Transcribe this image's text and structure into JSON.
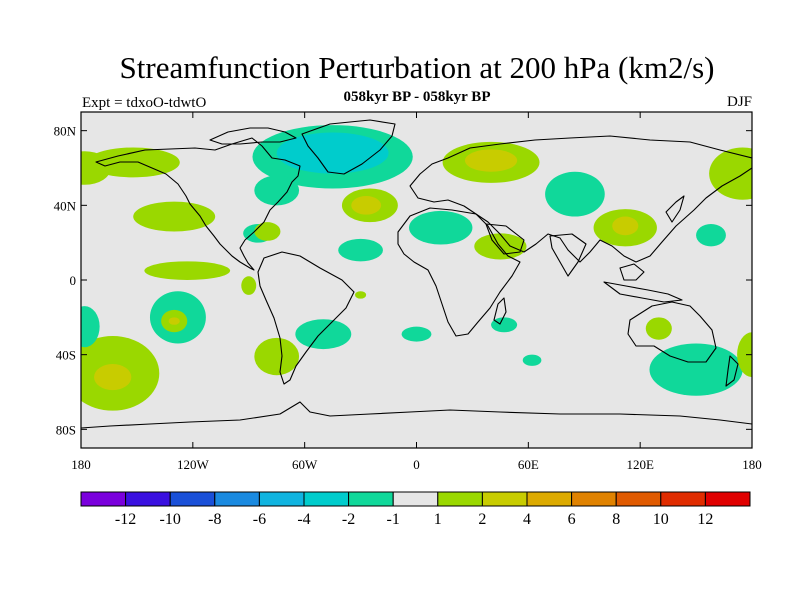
{
  "header": {
    "title": "Streamfunction Perturbation at 200 hPa (km2/s)",
    "subtitle": "058kyr BP - 058kyr BP",
    "left_label": "Expt = tdxoO-tdwtO",
    "right_label": "DJF"
  },
  "chart_data": {
    "type": "heatmap",
    "projection": "cylindrical-equidistant",
    "title": "Streamfunction Perturbation at 200 hPa (km2/s)",
    "subtitle": "058kyr BP - 058kyr BP",
    "xlim": [
      -180,
      180
    ],
    "ylim": [
      -90,
      90
    ],
    "x_ticks": [
      {
        "value": -180,
        "label": "180"
      },
      {
        "value": -120,
        "label": "120W"
      },
      {
        "value": -60,
        "label": "60W"
      },
      {
        "value": 0,
        "label": "0"
      },
      {
        "value": 60,
        "label": "60E"
      },
      {
        "value": 120,
        "label": "120E"
      },
      {
        "value": 180,
        "label": "180"
      }
    ],
    "y_ticks": [
      {
        "value": 80,
        "label": "80N"
      },
      {
        "value": 40,
        "label": "40N"
      },
      {
        "value": 0,
        "label": "0"
      },
      {
        "value": -40,
        "label": "40S"
      },
      {
        "value": -80,
        "label": "80S"
      }
    ],
    "background_color": "#e6e6e6",
    "colorbar": {
      "colors": [
        "#7a00dc",
        "#3a10e0",
        "#1a50d8",
        "#1a8ae0",
        "#10b4e0",
        "#00cccc",
        "#10d89a",
        "#e6e6e6",
        "#9ad800",
        "#c8cc00",
        "#dcaa00",
        "#e08200",
        "#e05a00",
        "#e02c00",
        "#e00000"
      ],
      "labels": [
        "-12",
        "-10",
        "-8",
        "-6",
        "-4",
        "-2",
        "-1",
        "1",
        "2",
        "4",
        "6",
        "8",
        "10",
        "12"
      ]
    },
    "regions": [
      {
        "id": "pos-n-atlantic-west-nam",
        "level": "2",
        "color": "#9ad800",
        "lon": -152,
        "lat": 63,
        "rlon": 25,
        "rlat": 8
      },
      {
        "id": "pos-n-atlantic-west-nam-2",
        "level": "2",
        "color": "#9ad800",
        "lon": -178,
        "lat": 60,
        "rlon": 14,
        "rlat": 9
      },
      {
        "id": "pos-n-nam-east",
        "level": "2",
        "color": "#9ad800",
        "lon": -130,
        "lat": 34,
        "rlon": 22,
        "rlat": 8
      },
      {
        "id": "neg-greenland",
        "level": "-2",
        "color": "#10d89a",
        "lon": -45,
        "lat": 66,
        "rlon": 43,
        "rlat": 17
      },
      {
        "id": "neg-greenland-core",
        "level": "-4",
        "color": "#00cccc",
        "lon": -45,
        "lat": 68,
        "rlon": 30,
        "rlat": 11
      },
      {
        "id": "neg-n-atlantic-w",
        "level": "-2",
        "color": "#10d89a",
        "lon": -75,
        "lat": 48,
        "rlon": 12,
        "rlat": 8
      },
      {
        "id": "pos-n-atlantic-mid",
        "level": "2",
        "color": "#9ad800",
        "lon": -25,
        "lat": 40,
        "rlon": 15,
        "rlat": 9
      },
      {
        "id": "pos-n-atlantic-mid-core",
        "level": "4",
        "color": "#c8cc00",
        "lon": -27,
        "lat": 40,
        "rlon": 8,
        "rlat": 5
      },
      {
        "id": "pos-europe",
        "level": "2",
        "color": "#9ad800",
        "lon": 40,
        "lat": 63,
        "rlon": 26,
        "rlat": 11
      },
      {
        "id": "pos-europe-core",
        "level": "4",
        "color": "#c8cc00",
        "lon": 40,
        "lat": 64,
        "rlon": 14,
        "rlat": 6
      },
      {
        "id": "neg-asia-north",
        "level": "-2",
        "color": "#10d89a",
        "lon": 85,
        "lat": 46,
        "rlon": 16,
        "rlat": 12
      },
      {
        "id": "neg-n-africa",
        "level": "-2",
        "color": "#10d89a",
        "lon": 13,
        "lat": 28,
        "rlon": 17,
        "rlat": 9
      },
      {
        "id": "neg-atlantic-trop",
        "level": "-2",
        "color": "#10d89a",
        "lon": -30,
        "lat": 16,
        "rlon": 12,
        "rlat": 6
      },
      {
        "id": "neg-sahara-west",
        "level": "-2",
        "color": "#10d89a",
        "lon": -85,
        "lat": 25,
        "rlon": 8,
        "rlat": 5
      },
      {
        "id": "pos-arabia",
        "level": "2",
        "color": "#9ad800",
        "lon": 45,
        "lat": 18,
        "rlon": 14,
        "rlat": 7
      },
      {
        "id": "pos-gulf",
        "level": "2",
        "color": "#9ad800",
        "lon": -80,
        "lat": 26,
        "rlon": 7,
        "rlat": 5
      },
      {
        "id": "pos-china",
        "level": "2",
        "color": "#9ad800",
        "lon": 112,
        "lat": 28,
        "rlon": 17,
        "rlat": 10
      },
      {
        "id": "pos-china-core",
        "level": "4",
        "color": "#c8cc00",
        "lon": 112,
        "lat": 29,
        "rlon": 7,
        "rlat": 5
      },
      {
        "id": "neg-w-pacific",
        "level": "-2",
        "color": "#10d89a",
        "lon": 158,
        "lat": 24,
        "rlon": 8,
        "rlat": 6
      },
      {
        "id": "pos-ne-pacific",
        "level": "2",
        "color": "#9ad800",
        "lon": 175,
        "lat": 57,
        "rlon": 18,
        "rlat": 14
      },
      {
        "id": "pos-e-pacific-trop",
        "level": "2",
        "color": "#9ad800",
        "lon": -123,
        "lat": 5,
        "rlon": 23,
        "rlat": 5
      },
      {
        "id": "pos-s-america-west",
        "level": "2",
        "color": "#9ad800",
        "lon": -90,
        "lat": -3,
        "rlon": 4,
        "rlat": 5
      },
      {
        "id": "neg-s-pacific-1",
        "level": "-2",
        "color": "#10d89a",
        "lon": -128,
        "lat": -20,
        "rlon": 15,
        "rlat": 14
      },
      {
        "id": "pos-s-pacific-1",
        "level": "2",
        "color": "#9ad800",
        "lon": -130,
        "lat": -22,
        "rlon": 7,
        "rlat": 6
      },
      {
        "id": "pos-s-pacific-core",
        "level": "4",
        "color": "#c8cc00",
        "lon": -130,
        "lat": -22,
        "rlon": 3,
        "rlat": 2
      },
      {
        "id": "pos-s-pacific-2",
        "level": "2",
        "color": "#9ad800",
        "lon": -163,
        "lat": -50,
        "rlon": 25,
        "rlat": 20
      },
      {
        "id": "pos-s-pacific-2-core",
        "level": "4",
        "color": "#c8cc00",
        "lon": -163,
        "lat": -52,
        "rlon": 10,
        "rlat": 7
      },
      {
        "id": "neg-s-pacific-3",
        "level": "-2",
        "color": "#10d89a",
        "lon": -178,
        "lat": -25,
        "rlon": 8,
        "rlat": 11
      },
      {
        "id": "pos-s-pacific-4",
        "level": "2",
        "color": "#9ad800",
        "lon": -75,
        "lat": -41,
        "rlon": 12,
        "rlat": 10
      },
      {
        "id": "neg-s-america-east",
        "level": "-2",
        "color": "#10d89a",
        "lon": -50,
        "lat": -29,
        "rlon": 15,
        "rlat": 8
      },
      {
        "id": "pos-s-atlantic",
        "level": "2",
        "color": "#9ad800",
        "lon": -30,
        "lat": -8,
        "rlon": 3,
        "rlat": 2
      },
      {
        "id": "neg-s-atlantic-2",
        "level": "-2",
        "color": "#10d89a",
        "lon": 0,
        "lat": -29,
        "rlon": 8,
        "rlat": 4
      },
      {
        "id": "neg-madagascar",
        "level": "-2",
        "color": "#10d89a",
        "lon": 47,
        "lat": -24,
        "rlon": 7,
        "rlat": 4
      },
      {
        "id": "neg-indian-south",
        "level": "-2",
        "color": "#10d89a",
        "lon": 62,
        "lat": -43,
        "rlon": 5,
        "rlat": 3
      },
      {
        "id": "pos-australia",
        "level": "2",
        "color": "#9ad800",
        "lon": 130,
        "lat": -26,
        "rlon": 7,
        "rlat": 6
      },
      {
        "id": "neg-s-ocean-au",
        "level": "-2",
        "color": "#10d89a",
        "lon": 150,
        "lat": -48,
        "rlon": 25,
        "rlat": 14
      },
      {
        "id": "pos-nz-east",
        "level": "2",
        "color": "#9ad800",
        "lon": 180,
        "lat": -40,
        "rlon": 8,
        "rlat": 12
      }
    ]
  }
}
